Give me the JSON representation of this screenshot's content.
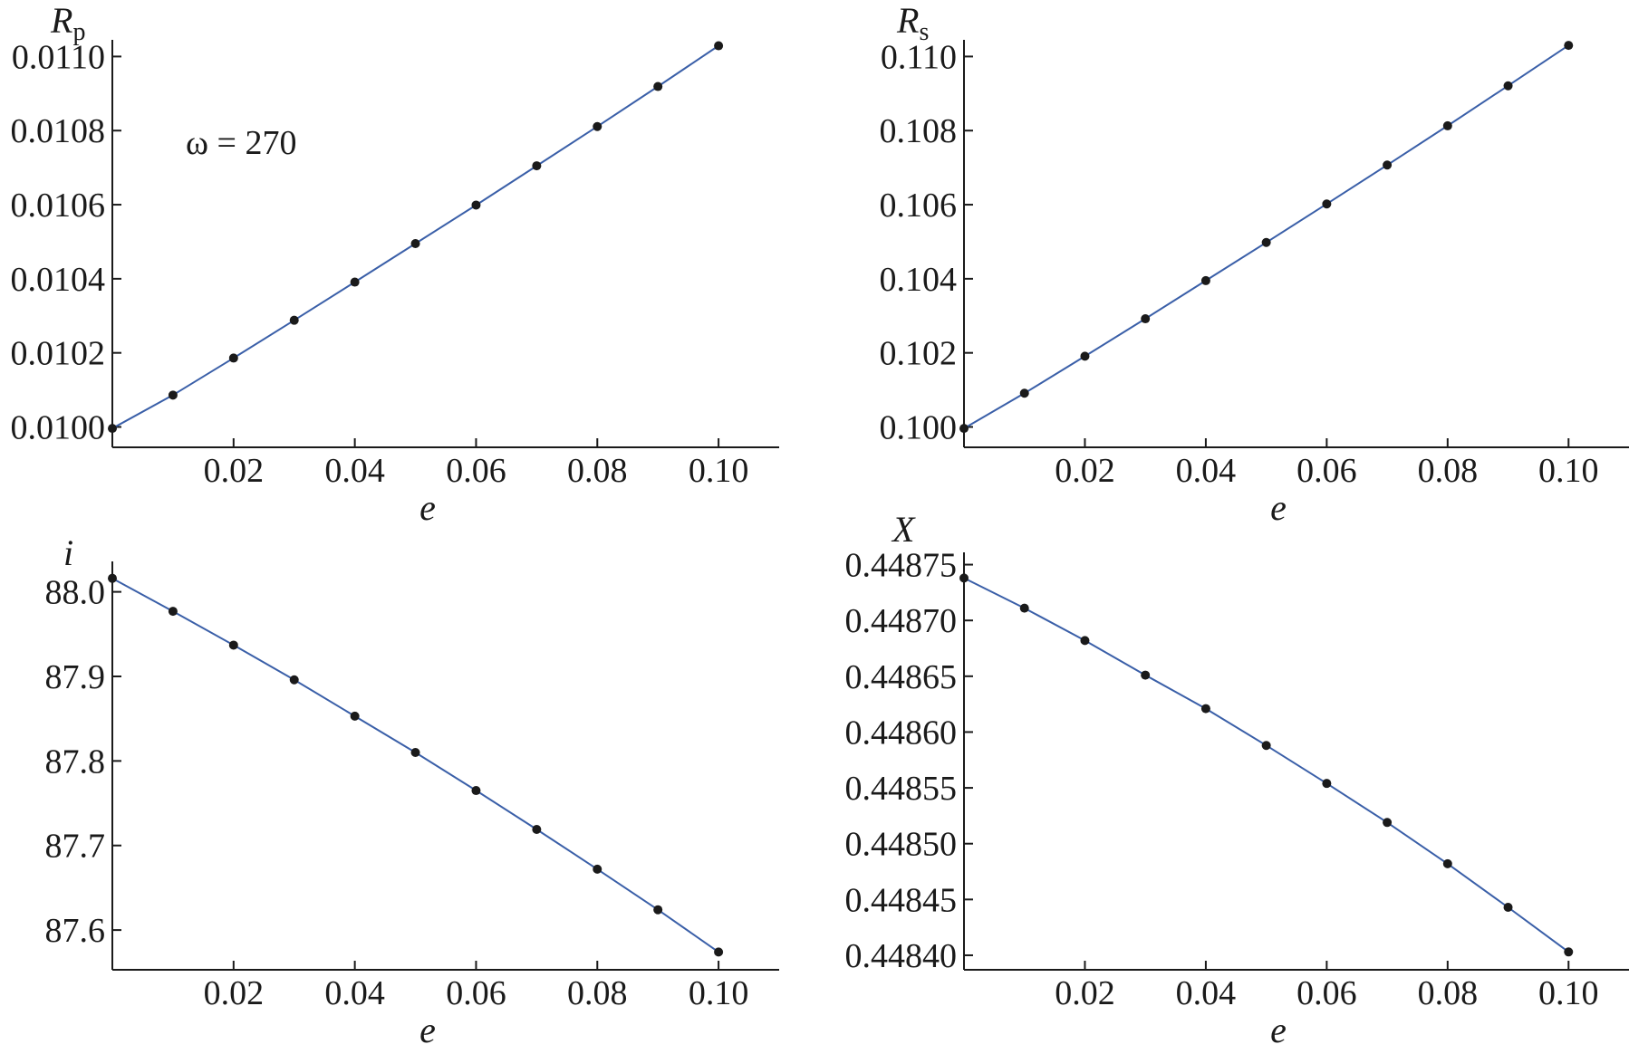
{
  "chart_data": [
    {
      "type": "line",
      "ylabel": "R",
      "ylabel_sub": "p",
      "xlabel": "e",
      "annotation": "ω = 270",
      "xlim": [
        0,
        0.11
      ],
      "ylim": [
        0.009945,
        0.011045
      ],
      "xticks": [
        0.02,
        0.04,
        0.06,
        0.08,
        0.1
      ],
      "xtick_labels": [
        "0.02",
        "0.04",
        "0.06",
        "0.08",
        "0.10"
      ],
      "yticks": [
        0.01,
        0.0102,
        0.0104,
        0.0106,
        0.0108,
        0.011
      ],
      "ytick_labels": [
        "0.0100",
        "0.0102",
        "0.0104",
        "0.0106",
        "0.0108",
        "0.0110"
      ],
      "x": [
        0,
        0.01,
        0.02,
        0.03,
        0.04,
        0.05,
        0.06,
        0.07,
        0.08,
        0.09,
        0.1
      ],
      "y": [
        0.009996,
        0.010086,
        0.010186,
        0.010288,
        0.010391,
        0.010495,
        0.010599,
        0.010705,
        0.010811,
        0.010919,
        0.011029
      ],
      "line_color": "#3a5fa8",
      "marker_color": "#1a1a1a"
    },
    {
      "type": "line",
      "ylabel": "R",
      "ylabel_sub": "s",
      "xlabel": "e",
      "xlim": [
        0,
        0.11
      ],
      "ylim": [
        0.09945,
        0.11045
      ],
      "xticks": [
        0.02,
        0.04,
        0.06,
        0.08,
        0.1
      ],
      "xtick_labels": [
        "0.02",
        "0.04",
        "0.06",
        "0.08",
        "0.10"
      ],
      "yticks": [
        0.1,
        0.102,
        0.104,
        0.106,
        0.108,
        0.11
      ],
      "ytick_labels": [
        "0.100",
        "0.102",
        "0.104",
        "0.106",
        "0.108",
        "0.110"
      ],
      "x": [
        0,
        0.01,
        0.02,
        0.03,
        0.04,
        0.05,
        0.06,
        0.07,
        0.08,
        0.09,
        0.1
      ],
      "y": [
        0.09996,
        0.10091,
        0.10191,
        0.10292,
        0.10395,
        0.10498,
        0.10602,
        0.10707,
        0.10813,
        0.10921,
        0.1103
      ],
      "line_color": "#3a5fa8",
      "marker_color": "#1a1a1a"
    },
    {
      "type": "line",
      "ylabel": "i",
      "xlabel": "e",
      "xlim": [
        0,
        0.11
      ],
      "ylim": [
        87.553,
        88.036
      ],
      "xticks": [
        0.02,
        0.04,
        0.06,
        0.08,
        0.1
      ],
      "xtick_labels": [
        "0.02",
        "0.04",
        "0.06",
        "0.08",
        "0.10"
      ],
      "yticks": [
        87.6,
        87.7,
        87.8,
        87.9,
        88.0
      ],
      "ytick_labels": [
        "87.6",
        "87.7",
        "87.8",
        "87.9",
        "88.0"
      ],
      "x": [
        0,
        0.01,
        0.02,
        0.03,
        0.04,
        0.05,
        0.06,
        0.07,
        0.08,
        0.09,
        0.1
      ],
      "y": [
        88.016,
        87.977,
        87.937,
        87.896,
        87.853,
        87.81,
        87.765,
        87.719,
        87.672,
        87.624,
        87.574
      ],
      "line_color": "#3a5fa8",
      "marker_color": "#1a1a1a"
    },
    {
      "type": "line",
      "ylabel": "X",
      "xlabel": "e",
      "xlim": [
        0,
        0.11
      ],
      "ylim": [
        0.448387,
        0.448761
      ],
      "xticks": [
        0.02,
        0.04,
        0.06,
        0.08,
        0.1
      ],
      "xtick_labels": [
        "0.02",
        "0.04",
        "0.06",
        "0.08",
        "0.10"
      ],
      "yticks": [
        0.4484,
        0.44845,
        0.4485,
        0.44855,
        0.4486,
        0.44865,
        0.4487,
        0.44875
      ],
      "ytick_labels": [
        "0.44840",
        "0.44845",
        "0.44850",
        "0.44855",
        "0.44860",
        "0.44865",
        "0.44870",
        "0.44875"
      ],
      "x": [
        0,
        0.01,
        0.02,
        0.03,
        0.04,
        0.05,
        0.06,
        0.07,
        0.08,
        0.09,
        0.1
      ],
      "y": [
        0.448738,
        0.448711,
        0.448682,
        0.448651,
        0.448621,
        0.448588,
        0.448554,
        0.448519,
        0.448482,
        0.448443,
        0.448403
      ],
      "line_color": "#3a5fa8",
      "marker_color": "#1a1a1a"
    }
  ]
}
